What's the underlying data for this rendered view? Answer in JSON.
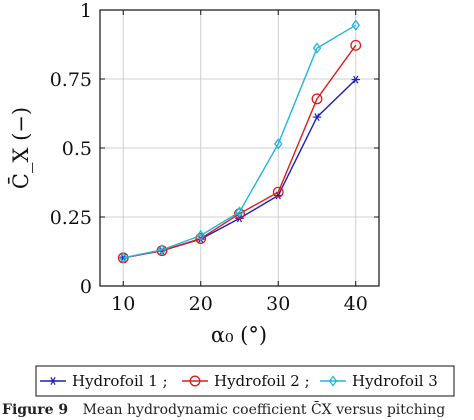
{
  "chart_data": {
    "type": "line",
    "x": [
      10,
      15,
      20,
      25,
      30,
      35,
      40
    ],
    "series": [
      {
        "name": "Hydrofoil 1 ;",
        "color": "#1f1fbf",
        "marker": "star",
        "values": [
          0.102,
          0.128,
          0.17,
          0.245,
          0.328,
          0.612,
          0.748
        ]
      },
      {
        "name": "Hydrofoil 2 ;",
        "color": "#e01b1b",
        "marker": "circle",
        "values": [
          0.102,
          0.128,
          0.172,
          0.262,
          0.34,
          0.678,
          0.872
        ]
      },
      {
        "name": "Hydrofoil 3",
        "color": "#22b5d9",
        "marker": "diamond",
        "values": [
          0.102,
          0.131,
          0.183,
          0.268,
          0.515,
          0.862,
          0.945
        ]
      }
    ],
    "xlim": [
      7,
      43
    ],
    "ylim": [
      0,
      1
    ],
    "x_ticks": [
      "10",
      "20",
      "30",
      "40"
    ],
    "y_ticks": [
      "0",
      "0.25",
      "0.5",
      "0.75",
      "1"
    ],
    "x_tick_values": [
      10,
      20,
      30,
      40
    ],
    "y_tick_values": [
      0,
      0.25,
      0.5,
      0.75,
      1
    ],
    "xlabel": "α₀ (°)",
    "ylabel": "C̄_X (−)",
    "grid": true,
    "legend_position": "bottom"
  },
  "caption": {
    "label": "Figure 9",
    "text": "Mean hydrodynamic coefficient C̄X versus pitching"
  }
}
